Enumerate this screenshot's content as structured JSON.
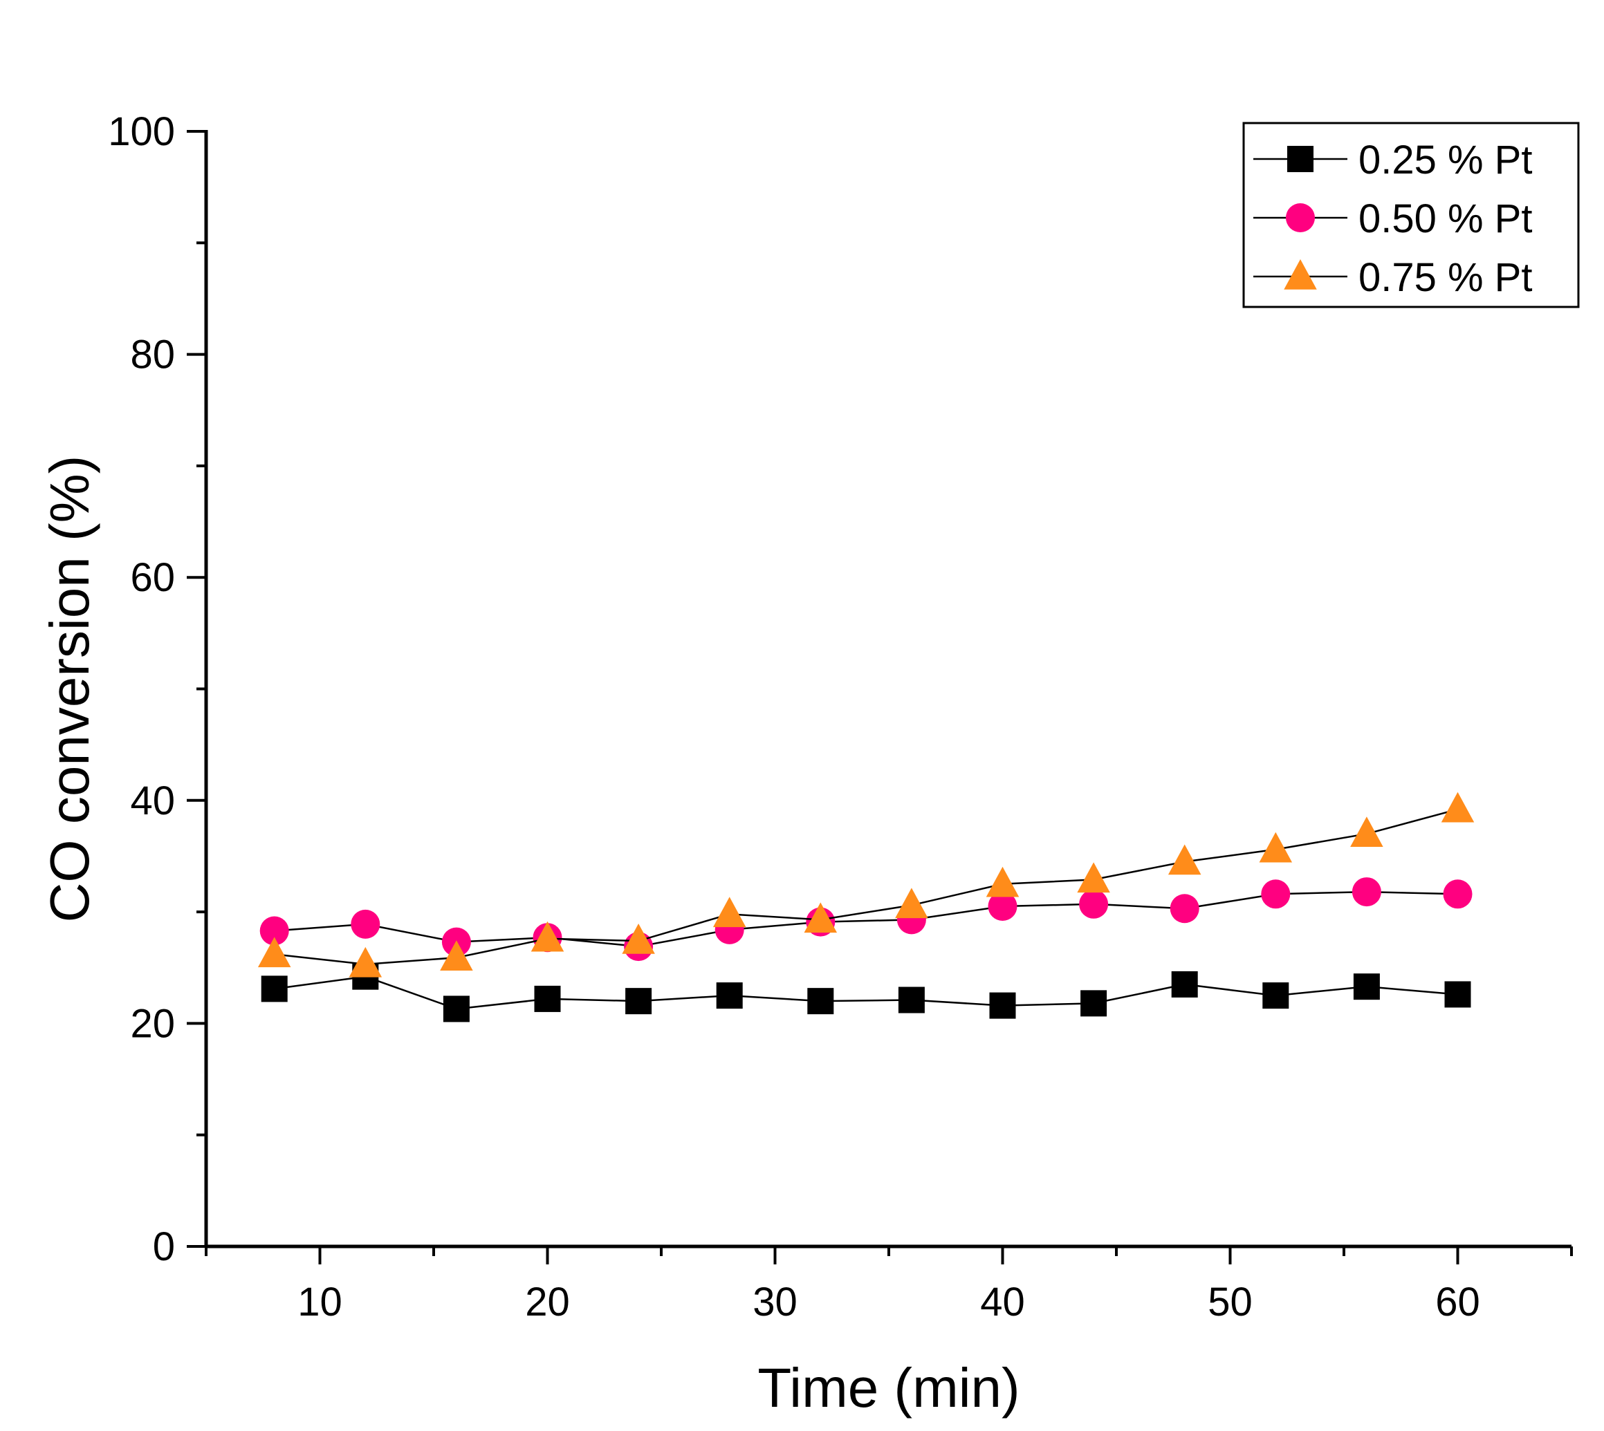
{
  "chart_data": {
    "type": "line",
    "xlabel": "Time (min)",
    "ylabel": "CO conversion (%)",
    "xlim": [
      5,
      65
    ],
    "ylim": [
      0,
      100
    ],
    "xticks": [
      10,
      20,
      30,
      40,
      50,
      60
    ],
    "yticks": [
      0,
      20,
      40,
      60,
      80,
      100
    ],
    "grid": false,
    "legend_position": "top-right",
    "x": [
      8,
      12,
      16,
      20,
      24,
      28,
      32,
      36,
      40,
      44,
      48,
      52,
      56,
      60
    ],
    "series": [
      {
        "name": "0.25 % Pt",
        "marker": "square",
        "color": "#000000",
        "values": [
          23.1,
          24.2,
          21.3,
          22.2,
          22.0,
          22.5,
          22.0,
          22.1,
          21.6,
          21.8,
          23.5,
          22.5,
          23.3,
          22.6
        ]
      },
      {
        "name": "0.50 % Pt",
        "marker": "circle",
        "color": "#ff0080",
        "values": [
          28.3,
          28.9,
          27.3,
          27.7,
          26.9,
          28.4,
          29.1,
          29.3,
          30.5,
          30.7,
          30.3,
          31.6,
          31.8,
          31.6
        ]
      },
      {
        "name": "0.75 % Pt",
        "marker": "triangle",
        "color": "#ff8c1a",
        "values": [
          26.2,
          25.3,
          25.9,
          27.6,
          27.4,
          29.8,
          29.3,
          30.6,
          32.5,
          32.9,
          34.5,
          35.6,
          37.0,
          39.2
        ]
      }
    ]
  }
}
